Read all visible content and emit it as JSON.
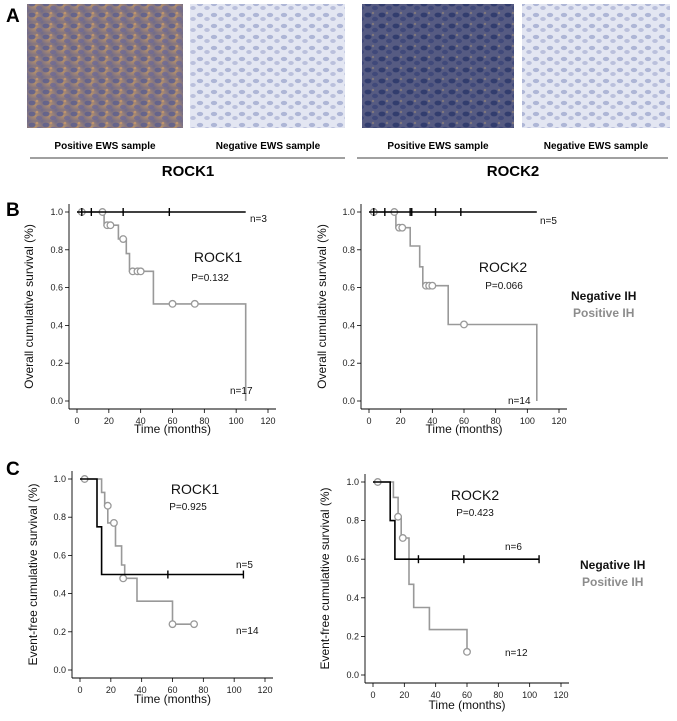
{
  "panels": {
    "A": "A",
    "B": "B",
    "C": "C"
  },
  "samples": [
    {
      "caption": "Positive EWS sample"
    },
    {
      "caption": "Negative EWS sample"
    },
    {
      "caption": "Positive EWS sample"
    },
    {
      "caption": "Negative EWS sample"
    }
  ],
  "groups": {
    "rock1": "ROCK1",
    "rock2": "ROCK2"
  },
  "legend": {
    "negative": "Negative IH",
    "positive": "Positive IH"
  },
  "colors": {
    "negative": "#000000",
    "positive": "#999999"
  },
  "chart_data": [
    {
      "type": "line",
      "title": "ROCK1",
      "pvalue": "P=0.132",
      "xlabel": "Time (months)",
      "ylabel": "Overall cumulative survival (%)",
      "xlim": [
        0,
        120
      ],
      "ylim": [
        0,
        1.0
      ],
      "xticks": [
        0,
        20,
        40,
        60,
        80,
        100,
        120
      ],
      "yticks": [
        0.0,
        0.2,
        0.4,
        0.6,
        0.8,
        1.0
      ],
      "series": [
        {
          "name": "Negative IH",
          "color": "#000000",
          "n_label": "n=3",
          "n_pos": "right",
          "steps": [
            [
              0,
              1.0
            ],
            [
              106,
              1.0
            ]
          ],
          "censors": [
            [
              3,
              1.0
            ],
            [
              9,
              1.0
            ],
            [
              29,
              1.0
            ],
            [
              58,
              1.0
            ]
          ]
        },
        {
          "name": "Positive IH",
          "color": "#999999",
          "n_label": "n=17",
          "n_pos": "bottom",
          "steps": [
            [
              0,
              1.0
            ],
            [
              17,
              1.0
            ],
            [
              17,
              0.93
            ],
            [
              26,
              0.93
            ],
            [
              26,
              0.857
            ],
            [
              31,
              0.857
            ],
            [
              31,
              0.78
            ],
            [
              33,
              0.78
            ],
            [
              33,
              0.686
            ],
            [
              48,
              0.686
            ],
            [
              48,
              0.514
            ],
            [
              106,
              0.514
            ],
            [
              106,
              0.0
            ]
          ],
          "censors": [
            [
              3,
              1.0
            ],
            [
              16,
              1.0
            ],
            [
              19,
              0.93
            ],
            [
              21,
              0.93
            ],
            [
              29,
              0.857
            ],
            [
              35,
              0.686
            ],
            [
              38,
              0.686
            ],
            [
              40,
              0.686
            ],
            [
              60,
              0.514
            ],
            [
              74,
              0.514
            ]
          ]
        }
      ]
    },
    {
      "type": "line",
      "title": "ROCK2",
      "pvalue": "P=0.066",
      "xlabel": "Time (months)",
      "ylabel": "Overall cumulative survival (%)",
      "xlim": [
        0,
        120
      ],
      "ylim": [
        0,
        1.0
      ],
      "xticks": [
        0,
        20,
        40,
        60,
        80,
        100,
        120
      ],
      "yticks": [
        0.0,
        0.2,
        0.4,
        0.6,
        0.8,
        1.0
      ],
      "series": [
        {
          "name": "Negative IH",
          "color": "#000000",
          "n_label": "n=5",
          "n_pos": "right",
          "steps": [
            [
              0,
              1.0
            ],
            [
              106,
              1.0
            ]
          ],
          "censors": [
            [
              3,
              1.0
            ],
            [
              10,
              1.0
            ],
            [
              26,
              1.0
            ],
            [
              27,
              1.0
            ],
            [
              42,
              1.0
            ],
            [
              58,
              1.0
            ]
          ]
        },
        {
          "name": "Positive IH",
          "color": "#999999",
          "n_label": "n=14",
          "n_pos": "bottom",
          "steps": [
            [
              0,
              1.0
            ],
            [
              17,
              1.0
            ],
            [
              17,
              0.917
            ],
            [
              26,
              0.917
            ],
            [
              26,
              0.82
            ],
            [
              32,
              0.82
            ],
            [
              32,
              0.71
            ],
            [
              34,
              0.71
            ],
            [
              34,
              0.61
            ],
            [
              50,
              0.61
            ],
            [
              50,
              0.405
            ],
            [
              106,
              0.405
            ],
            [
              106,
              0.0
            ]
          ],
          "censors": [
            [
              3,
              1.0
            ],
            [
              16,
              1.0
            ],
            [
              19,
              0.917
            ],
            [
              21,
              0.917
            ],
            [
              36,
              0.61
            ],
            [
              38,
              0.61
            ],
            [
              40,
              0.61
            ],
            [
              60,
              0.405
            ]
          ]
        }
      ]
    },
    {
      "type": "line",
      "title": "ROCK1",
      "pvalue": "P=0.925",
      "xlabel": "Time (months)",
      "ylabel": "Event-free cumulative survival (%)",
      "xlim": [
        0,
        120
      ],
      "ylim": [
        0,
        1.0
      ],
      "xticks": [
        0,
        20,
        40,
        60,
        80,
        100,
        120
      ],
      "yticks": [
        0.0,
        0.2,
        0.4,
        0.6,
        0.8,
        1.0
      ],
      "series": [
        {
          "name": "Negative IH",
          "color": "#000000",
          "n_label": "n=5",
          "n_pos": "right",
          "steps": [
            [
              0,
              1.0
            ],
            [
              11,
              1.0
            ],
            [
              11,
              0.75
            ],
            [
              14,
              0.75
            ],
            [
              14,
              0.5
            ],
            [
              106,
              0.5
            ]
          ],
          "censors": [
            [
              57,
              0.5
            ],
            [
              106,
              0.5
            ]
          ]
        },
        {
          "name": "Positive IH",
          "color": "#999999",
          "n_label": "n=14",
          "n_pos": "right",
          "steps": [
            [
              0,
              1.0
            ],
            [
              14,
              1.0
            ],
            [
              14,
              0.93
            ],
            [
              16,
              0.93
            ],
            [
              16,
              0.86
            ],
            [
              18,
              0.86
            ],
            [
              18,
              0.77
            ],
            [
              23,
              0.77
            ],
            [
              23,
              0.65
            ],
            [
              27,
              0.65
            ],
            [
              27,
              0.55
            ],
            [
              29,
              0.55
            ],
            [
              29,
              0.48
            ],
            [
              37,
              0.48
            ],
            [
              37,
              0.36
            ],
            [
              60,
              0.36
            ],
            [
              60,
              0.24
            ],
            [
              74,
              0.24
            ]
          ],
          "censors": [
            [
              3,
              1.0
            ],
            [
              18,
              0.86
            ],
            [
              22,
              0.77
            ],
            [
              28,
              0.48
            ],
            [
              60,
              0.24
            ],
            [
              74,
              0.24
            ]
          ]
        }
      ]
    },
    {
      "type": "line",
      "title": "ROCK2",
      "pvalue": "P=0.423",
      "xlabel": "Time (months)",
      "ylabel": "Event-free cumulative survival (%)",
      "xlim": [
        0,
        120
      ],
      "ylim": [
        0,
        1.0
      ],
      "xticks": [
        0,
        20,
        40,
        60,
        80,
        100,
        120
      ],
      "yticks": [
        0.0,
        0.2,
        0.4,
        0.6,
        0.8,
        1.0
      ],
      "series": [
        {
          "name": "Negative IH",
          "color": "#000000",
          "n_label": "n=6",
          "n_pos": "right",
          "steps": [
            [
              0,
              1.0
            ],
            [
              11,
              1.0
            ],
            [
              11,
              0.8
            ],
            [
              14,
              0.8
            ],
            [
              14,
              0.6
            ],
            [
              106,
              0.6
            ]
          ],
          "censors": [
            [
              29,
              0.6
            ],
            [
              58,
              0.6
            ],
            [
              106,
              0.6
            ]
          ]
        },
        {
          "name": "Positive IH",
          "color": "#999999",
          "n_label": "n=12",
          "n_pos": "right",
          "steps": [
            [
              0,
              1.0
            ],
            [
              13,
              1.0
            ],
            [
              13,
              0.92
            ],
            [
              16,
              0.92
            ],
            [
              16,
              0.82
            ],
            [
              18,
              0.82
            ],
            [
              18,
              0.71
            ],
            [
              23,
              0.71
            ],
            [
              23,
              0.47
            ],
            [
              26,
              0.47
            ],
            [
              26,
              0.35
            ],
            [
              36,
              0.35
            ],
            [
              36,
              0.235
            ],
            [
              60,
              0.235
            ],
            [
              60,
              0.12
            ]
          ],
          "censors": [
            [
              3,
              1.0
            ],
            [
              16,
              0.82
            ],
            [
              19,
              0.71
            ],
            [
              60,
              0.12
            ]
          ]
        }
      ]
    }
  ]
}
